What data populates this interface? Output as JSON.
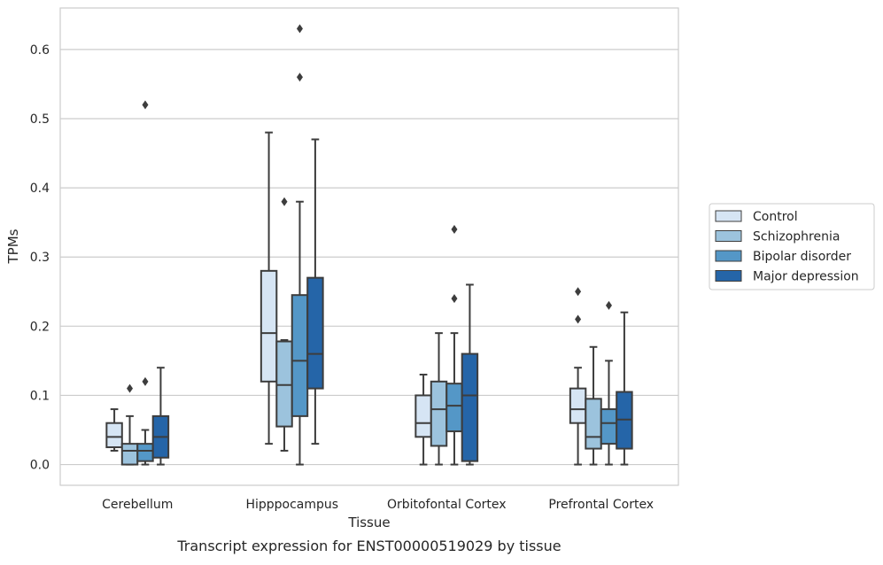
{
  "caption": "Transcript expression for ENST00000519029 by tissue",
  "chart_data": {
    "type": "box",
    "xlabel": "Tissue",
    "ylabel": "TPMs",
    "ylim": [
      -0.03,
      0.66
    ],
    "yticks": [
      0.0,
      0.1,
      0.2,
      0.3,
      0.4,
      0.5,
      0.6
    ],
    "ytick_labels": [
      "0.0",
      "0.1",
      "0.2",
      "0.3",
      "0.4",
      "0.5",
      "0.6"
    ],
    "grid": "horizontal",
    "legend_position": "right",
    "categories": [
      "Cerebellum",
      "Hipppocampus",
      "Orbitofontal Cortex",
      "Prefrontal Cortex"
    ],
    "series": [
      {
        "name": "Control",
        "color": "#d6e5f4",
        "boxes": [
          {
            "whislo": 0.02,
            "q1": 0.025,
            "med": 0.04,
            "q3": 0.06,
            "whishi": 0.08,
            "fliers": []
          },
          {
            "whislo": 0.03,
            "q1": 0.12,
            "med": 0.19,
            "q3": 0.28,
            "whishi": 0.48,
            "fliers": []
          },
          {
            "whislo": 0.0,
            "q1": 0.04,
            "med": 0.06,
            "q3": 0.1,
            "whishi": 0.13,
            "fliers": []
          },
          {
            "whislo": 0.0,
            "q1": 0.06,
            "med": 0.08,
            "q3": 0.11,
            "whishi": 0.14,
            "fliers": [
              0.21,
              0.25
            ]
          }
        ]
      },
      {
        "name": "Schizophrenia",
        "color": "#9cc3dd",
        "boxes": [
          {
            "whislo": 0.0,
            "q1": 0.0,
            "med": 0.02,
            "q3": 0.03,
            "whishi": 0.07,
            "fliers": [
              0.11
            ]
          },
          {
            "whislo": 0.02,
            "q1": 0.055,
            "med": 0.115,
            "q3": 0.178,
            "whishi": 0.18,
            "fliers": [
              0.38
            ]
          },
          {
            "whislo": 0.0,
            "q1": 0.027,
            "med": 0.08,
            "q3": 0.12,
            "whishi": 0.19,
            "fliers": []
          },
          {
            "whislo": 0.0,
            "q1": 0.023,
            "med": 0.04,
            "q3": 0.095,
            "whishi": 0.17,
            "fliers": []
          }
        ]
      },
      {
        "name": "Bipolar disorder",
        "color": "#5497c7",
        "boxes": [
          {
            "whislo": 0.0,
            "q1": 0.005,
            "med": 0.02,
            "q3": 0.03,
            "whishi": 0.05,
            "fliers": [
              0.12,
              0.52
            ]
          },
          {
            "whislo": 0.0,
            "q1": 0.07,
            "med": 0.15,
            "q3": 0.245,
            "whishi": 0.38,
            "fliers": [
              0.56,
              0.63
            ]
          },
          {
            "whislo": 0.0,
            "q1": 0.048,
            "med": 0.085,
            "q3": 0.117,
            "whishi": 0.19,
            "fliers": [
              0.24,
              0.34
            ]
          },
          {
            "whislo": 0.0,
            "q1": 0.03,
            "med": 0.06,
            "q3": 0.08,
            "whishi": 0.15,
            "fliers": [
              0.23
            ]
          }
        ]
      },
      {
        "name": "Major depression",
        "color": "#2565a8",
        "boxes": [
          {
            "whislo": 0.0,
            "q1": 0.01,
            "med": 0.04,
            "q3": 0.07,
            "whishi": 0.14,
            "fliers": []
          },
          {
            "whislo": 0.03,
            "q1": 0.11,
            "med": 0.16,
            "q3": 0.27,
            "whishi": 0.47,
            "fliers": []
          },
          {
            "whislo": 0.0,
            "q1": 0.005,
            "med": 0.1,
            "q3": 0.16,
            "whishi": 0.26,
            "fliers": []
          },
          {
            "whislo": 0.0,
            "q1": 0.023,
            "med": 0.065,
            "q3": 0.105,
            "whishi": 0.22,
            "fliers": []
          }
        ]
      }
    ]
  }
}
